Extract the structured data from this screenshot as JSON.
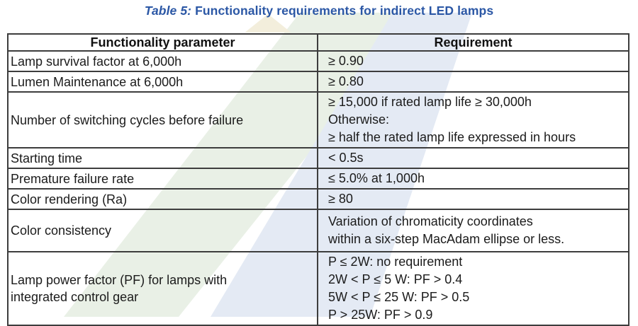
{
  "title": {
    "prefix": "Table 5:",
    "text": " Functionality requirements for indirect LED lamps"
  },
  "table": {
    "headers": [
      "Functionality parameter",
      "Requirement"
    ],
    "rows": [
      {
        "parameter": "Lamp survival factor at 6,000h",
        "requirement": [
          "≥ 0.90"
        ]
      },
      {
        "parameter": "Lumen Maintenance at 6,000h",
        "requirement": [
          "≥ 0.80"
        ]
      },
      {
        "parameter": "Number of switching cycles before failure",
        "requirement": [
          "≥ 15,000 if rated lamp life ≥ 30,000h",
          "Otherwise:",
          "≥ half the rated lamp life expressed in hours"
        ]
      },
      {
        "parameter": "Starting time",
        "requirement": [
          "< 0.5s"
        ]
      },
      {
        "parameter": "Premature failure rate",
        "requirement": [
          "≤ 5.0% at 1,000h"
        ]
      },
      {
        "parameter": "Color rendering (Ra)",
        "requirement": [
          "≥ 80"
        ]
      },
      {
        "parameter": "Color consistency",
        "requirement": [
          "Variation of chromaticity coordinates",
          "within a six-step MacAdam ellipse or less."
        ]
      },
      {
        "parameter": "Lamp power factor (PF) for lamps with integrated control gear",
        "requirement": [
          "P ≤ 2W: no requirement",
          "2W < P ≤ 5 W: PF > 0.4",
          "5W < P ≤ 25 W: PF > 0.5",
          "P > 25W: PF > 0.9"
        ]
      }
    ]
  },
  "colors": {
    "title_blue": "#2b57a5",
    "table_border": "#3d3d3d",
    "body_text": "#1b1b1b",
    "watermark_green": "#e9f0e6",
    "watermark_blue": "#e4eaf4",
    "watermark_cream": "#f3eedc"
  }
}
